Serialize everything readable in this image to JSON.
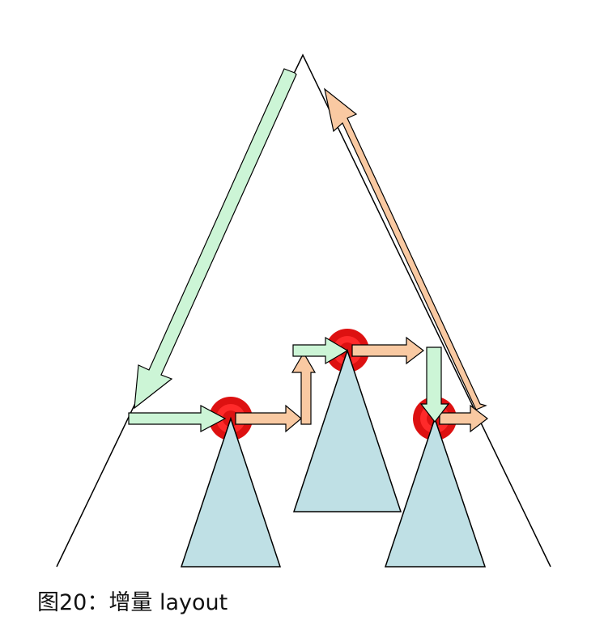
{
  "caption": "图20：增量 layout",
  "colors": {
    "outline": "#000000",
    "subtree_fill": "#bfe0e5",
    "forward_arrow": "#ccf5d6",
    "return_arrow": "#f9c9a2",
    "node_ring": "#dd1111",
    "node_core": "#ff1a1a"
  }
}
